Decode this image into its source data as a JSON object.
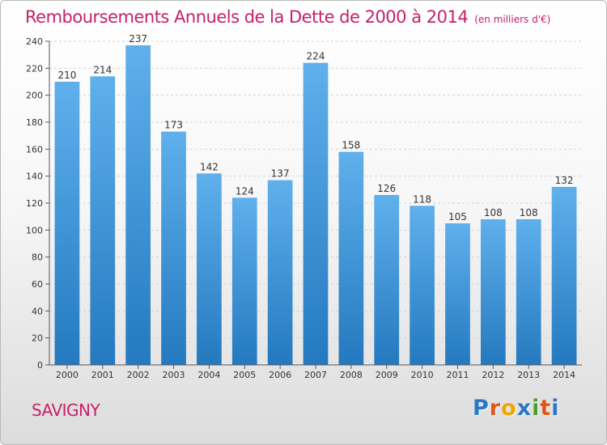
{
  "chart_data": {
    "type": "bar",
    "title": "Remboursements Annuels de la Dette de 2000 à 2014",
    "subtitle": "(en milliers d'€)",
    "categories": [
      "2000",
      "2001",
      "2002",
      "2003",
      "2004",
      "2005",
      "2006",
      "2007",
      "2008",
      "2009",
      "2010",
      "2011",
      "2012",
      "2013",
      "2014"
    ],
    "values": [
      210,
      214,
      237,
      173,
      142,
      124,
      137,
      224,
      158,
      126,
      118,
      105,
      108,
      108,
      132
    ],
    "ylim": [
      0,
      240
    ],
    "yticks": [
      0,
      20,
      40,
      60,
      80,
      100,
      120,
      140,
      160,
      180,
      200,
      220,
      240
    ],
    "grid": true,
    "bar_color": "#3d8fd6"
  },
  "footer": {
    "city": "SAVIGNY",
    "logo_letters": [
      "P",
      "r",
      "o",
      "x",
      "i",
      "t",
      "i"
    ],
    "logo_colors": [
      "#2a78c8",
      "#e0571b",
      "#f0a400",
      "#2a78c8",
      "#4aa02c",
      "#e0571b",
      "#2a78c8"
    ]
  }
}
